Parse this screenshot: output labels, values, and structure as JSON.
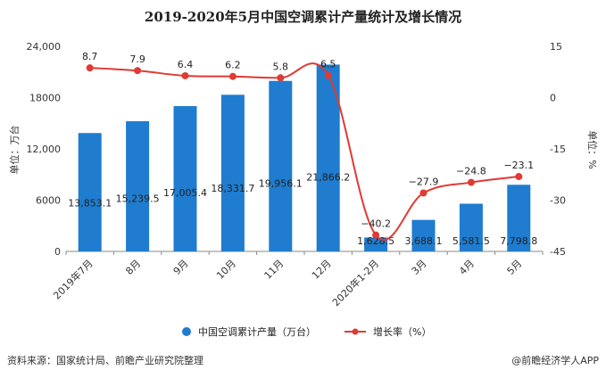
{
  "page": {
    "source_note": "资料来源：国家统计局、前瞻产业研究院整理",
    "footer_brand": "@前瞻经济学人APP"
  },
  "chart_data": {
    "type": "bar",
    "title": "2019-2020年5月中国空调累计产量统计及增长情况",
    "categories": [
      "2019年7月",
      "8月",
      "9月",
      "10月",
      "11月",
      "12月",
      "2020年1-2月",
      "3月",
      "4月",
      "5月"
    ],
    "series": [
      {
        "name": "中国空调累计产量（万台）",
        "type": "bar",
        "axis": "left",
        "color": "#1f7ccf",
        "values": [
          13853.1,
          15239.5,
          17005.4,
          18331.7,
          19956.1,
          21866.2,
          1628.5,
          3688.1,
          5581.5,
          7798.8
        ],
        "labels": [
          "13,853.1",
          "15,239.5",
          "17,005.4",
          "18,331.7",
          "19,956.1",
          "21,866.2",
          "1,628.5",
          "3,688.1",
          "5,581.5",
          "7,798.8"
        ]
      },
      {
        "name": "增长率（%）",
        "type": "line",
        "axis": "right",
        "color": "#e03a33",
        "values": [
          8.7,
          7.9,
          6.4,
          6.2,
          5.8,
          6.5,
          -40.2,
          -27.9,
          -24.8,
          -23.1
        ],
        "labels": [
          "8.7",
          "7.9",
          "6.4",
          "6.2",
          "5.8",
          "6.5",
          "−40.2",
          "−27.9",
          "−24.8",
          "−23.1"
        ]
      }
    ],
    "ylabel": "单位：万台",
    "y2label": "单位：%",
    "ylim": [
      0,
      24000
    ],
    "y_ticks": [
      "0",
      "6000",
      "12,000",
      "18000",
      "24,000"
    ],
    "y_tick_values": [
      0,
      6000,
      12000,
      18000,
      24000
    ],
    "y2lim": [
      -45,
      15
    ],
    "y2_ticks": [
      "-45",
      "-30",
      "-15",
      "0",
      "15"
    ],
    "y2_tick_values": [
      -45,
      -30,
      -15,
      0,
      15
    ],
    "grid": false,
    "legend_position": "bottom"
  }
}
